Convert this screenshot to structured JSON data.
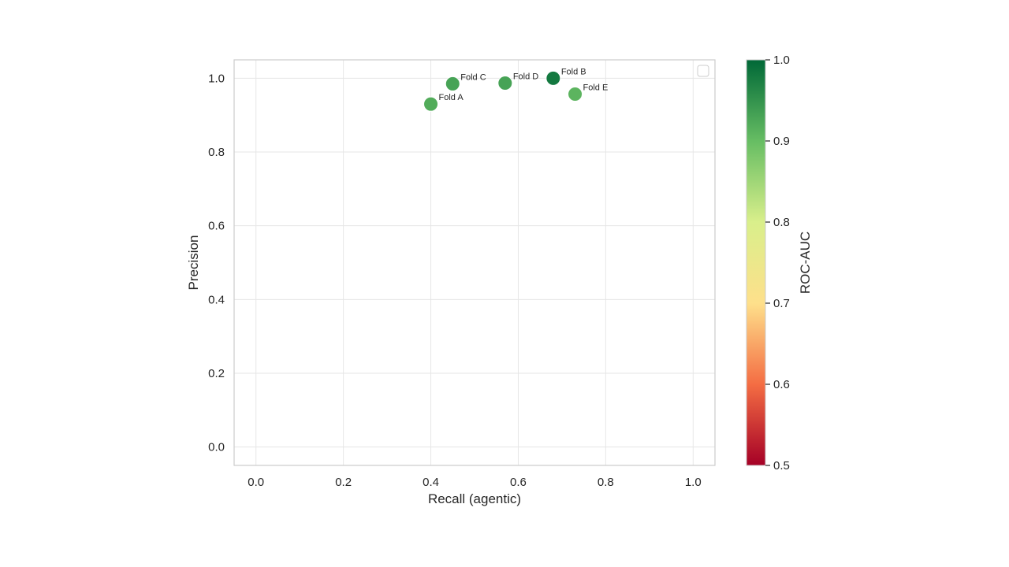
{
  "chart_data": {
    "type": "scatter",
    "title": "",
    "xlabel": "Recall (agentic)",
    "ylabel": "Precision",
    "xlim": [
      -0.05,
      1.05
    ],
    "ylim": [
      -0.05,
      1.05
    ],
    "xticks": [
      "0.0",
      "0.2",
      "0.4",
      "0.6",
      "0.8",
      "1.0"
    ],
    "yticks": [
      "0.0",
      "0.2",
      "0.4",
      "0.6",
      "0.8",
      "1.0"
    ],
    "grid": true,
    "legend": "top-right (empty)",
    "points": [
      {
        "label": "Fold A",
        "x": 0.4,
        "y": 0.93,
        "roc_auc": 0.92
      },
      {
        "label": "Fold B",
        "x": 0.68,
        "y": 1.0,
        "roc_auc": 0.98
      },
      {
        "label": "Fold C",
        "x": 0.45,
        "y": 0.985,
        "roc_auc": 0.93
      },
      {
        "label": "Fold D",
        "x": 0.57,
        "y": 0.987,
        "roc_auc": 0.93
      },
      {
        "label": "Fold E",
        "x": 0.73,
        "y": 0.957,
        "roc_auc": 0.91
      }
    ],
    "colorbar": {
      "label": "ROC-AUC",
      "range": [
        0.5,
        1.0
      ],
      "ticks": [
        "0.5",
        "0.6",
        "0.7",
        "0.8",
        "0.9",
        "1.0"
      ],
      "colormap": "RdYlGn",
      "colormap_stops": [
        "#a50026",
        "#f46d43",
        "#fee08b",
        "#d9ef8b",
        "#66bd63",
        "#006837"
      ]
    }
  }
}
